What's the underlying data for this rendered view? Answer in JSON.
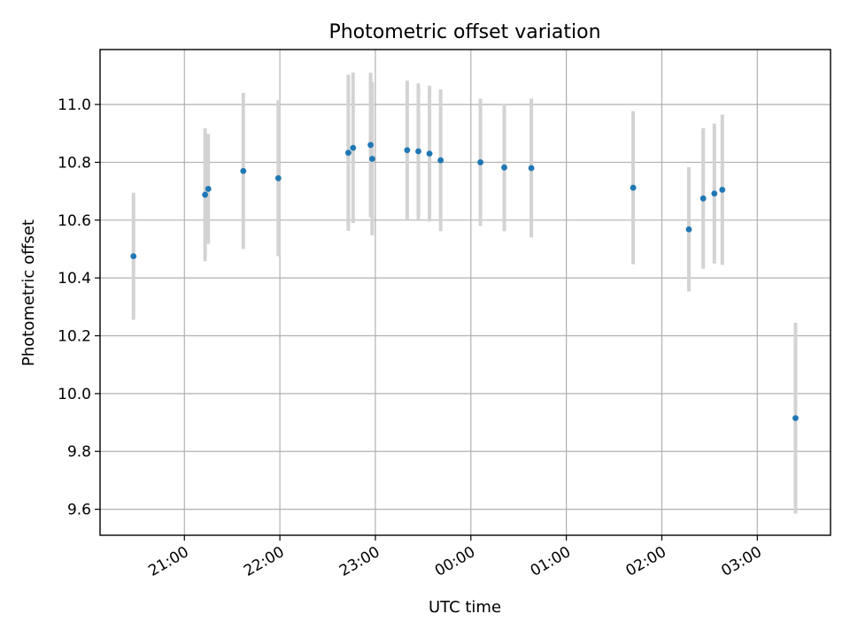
{
  "chart_data": {
    "type": "scatter",
    "title": "Photometric offset variation",
    "xlabel": "UTC time",
    "ylabel": "Photometric offset",
    "x_axis_type": "time",
    "xlim": [
      "2024-01-01 20:07",
      "2024-01-02 03:46"
    ],
    "ylim": [
      9.51,
      11.19
    ],
    "grid": true,
    "x_ticks": [
      {
        "value": "2024-01-01 21:00",
        "label": "21:00"
      },
      {
        "value": "2024-01-01 22:00",
        "label": "22:00"
      },
      {
        "value": "2024-01-01 23:00",
        "label": "23:00"
      },
      {
        "value": "2024-01-02 00:00",
        "label": "00:00"
      },
      {
        "value": "2024-01-02 01:00",
        "label": "01:00"
      },
      {
        "value": "2024-01-02 02:00",
        "label": "02:00"
      },
      {
        "value": "2024-01-02 03:00",
        "label": "03:00"
      }
    ],
    "y_ticks": [
      9.6,
      9.8,
      10.0,
      10.2,
      10.4,
      10.6,
      10.8,
      11.0
    ],
    "y_tick_labels": [
      "9.6",
      "9.8",
      "10.0",
      "10.2",
      "10.4",
      "10.6",
      "10.8",
      "11.0"
    ],
    "colors": {
      "points": "#1f77b4",
      "error_bars": "#d3d3d3",
      "grid": "#b0b0b0"
    },
    "series": [
      {
        "points": [
          {
            "x": "2024-01-01 20:28",
            "y": 10.475,
            "err": 0.22
          },
          {
            "x": "2024-01-01 21:13",
            "y": 10.688,
            "err": 0.23
          },
          {
            "x": "2024-01-01 21:15",
            "y": 10.708,
            "err": 0.19
          },
          {
            "x": "2024-01-01 21:37",
            "y": 10.77,
            "err": 0.27
          },
          {
            "x": "2024-01-01 21:59",
            "y": 10.745,
            "err": 0.27
          },
          {
            "x": "2024-01-01 22:43",
            "y": 10.833,
            "err": 0.27
          },
          {
            "x": "2024-01-01 22:46",
            "y": 10.85,
            "err": 0.26
          },
          {
            "x": "2024-01-01 22:57",
            "y": 10.86,
            "err": 0.25
          },
          {
            "x": "2024-01-01 22:58",
            "y": 10.812,
            "err": 0.265
          },
          {
            "x": "2024-01-01 23:20",
            "y": 10.842,
            "err": 0.24
          },
          {
            "x": "2024-01-01 23:27",
            "y": 10.838,
            "err": 0.235
          },
          {
            "x": "2024-01-01 23:34",
            "y": 10.83,
            "err": 0.235
          },
          {
            "x": "2024-01-01 23:41",
            "y": 10.807,
            "err": 0.245
          },
          {
            "x": "2024-01-02 00:06",
            "y": 10.8,
            "err": 0.22
          },
          {
            "x": "2024-01-02 00:21",
            "y": 10.782,
            "err": 0.22
          },
          {
            "x": "2024-01-02 00:38",
            "y": 10.78,
            "err": 0.24
          },
          {
            "x": "2024-01-02 01:42",
            "y": 10.712,
            "err": 0.265
          },
          {
            "x": "2024-01-02 02:17",
            "y": 10.568,
            "err": 0.215
          },
          {
            "x": "2024-01-02 02:26",
            "y": 10.675,
            "err": 0.243
          },
          {
            "x": "2024-01-02 02:33",
            "y": 10.692,
            "err": 0.242
          },
          {
            "x": "2024-01-02 02:38",
            "y": 10.705,
            "err": 0.26
          },
          {
            "x": "2024-01-02 03:24",
            "y": 9.915,
            "err": 0.33
          }
        ]
      }
    ]
  }
}
